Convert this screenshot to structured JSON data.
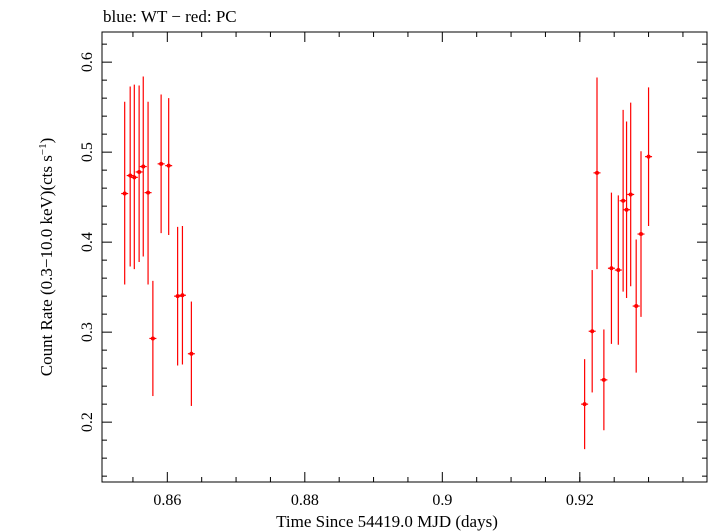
{
  "chart_data": {
    "type": "scatter",
    "title": "blue: WT − red: PC",
    "xlabel": "Time Since 54419.0 MJD (days)",
    "ylabel_main": "Count Rate (0.3−10.0 keV)(cts s",
    "ylabel_sup": "−1",
    "ylabel_end": ")",
    "xlim": [
      0.8505,
      0.9385
    ],
    "ylim": [
      0.1335,
      0.6335
    ],
    "xticks": [
      0.86,
      0.88,
      0.9,
      0.92
    ],
    "xtick_labels": [
      "0.86",
      "0.88",
      "0.9",
      "0.92"
    ],
    "yticks": [
      0.2,
      0.3,
      0.4,
      0.5,
      0.6
    ],
    "ytick_labels": [
      "0.2",
      "0.3",
      "0.4",
      "0.5",
      "0.6"
    ],
    "grid": false,
    "series": [
      {
        "color": "#ff0000",
        "points": [
          {
            "x": 0.8538,
            "y": 0.454,
            "ylo": 0.353,
            "yhi": 0.556
          },
          {
            "x": 0.8546,
            "y": 0.474,
            "ylo": 0.373,
            "yhi": 0.573
          },
          {
            "x": 0.8552,
            "y": 0.472,
            "ylo": 0.37,
            "yhi": 0.575
          },
          {
            "x": 0.8559,
            "y": 0.478,
            "ylo": 0.378,
            "yhi": 0.574
          },
          {
            "x": 0.8565,
            "y": 0.484,
            "ylo": 0.384,
            "yhi": 0.584
          },
          {
            "x": 0.8572,
            "y": 0.455,
            "ylo": 0.353,
            "yhi": 0.556
          },
          {
            "x": 0.8579,
            "y": 0.293,
            "ylo": 0.229,
            "yhi": 0.357
          },
          {
            "x": 0.8591,
            "y": 0.487,
            "ylo": 0.41,
            "yhi": 0.564
          },
          {
            "x": 0.8602,
            "y": 0.485,
            "ylo": 0.408,
            "yhi": 0.56
          },
          {
            "x": 0.8615,
            "y": 0.34,
            "ylo": 0.263,
            "yhi": 0.417
          },
          {
            "x": 0.8622,
            "y": 0.341,
            "ylo": 0.264,
            "yhi": 0.418
          },
          {
            "x": 0.8635,
            "y": 0.276,
            "ylo": 0.218,
            "yhi": 0.334
          },
          {
            "x": 0.9207,
            "y": 0.22,
            "ylo": 0.17,
            "yhi": 0.27
          },
          {
            "x": 0.9218,
            "y": 0.301,
            "ylo": 0.233,
            "yhi": 0.369
          },
          {
            "x": 0.9225,
            "y": 0.477,
            "ylo": 0.37,
            "yhi": 0.583
          },
          {
            "x": 0.9235,
            "y": 0.247,
            "ylo": 0.191,
            "yhi": 0.303
          },
          {
            "x": 0.9246,
            "y": 0.371,
            "ylo": 0.287,
            "yhi": 0.455
          },
          {
            "x": 0.9256,
            "y": 0.369,
            "ylo": 0.286,
            "yhi": 0.452
          },
          {
            "x": 0.9263,
            "y": 0.446,
            "ylo": 0.345,
            "yhi": 0.547
          },
          {
            "x": 0.9268,
            "y": 0.436,
            "ylo": 0.338,
            "yhi": 0.534
          },
          {
            "x": 0.9274,
            "y": 0.453,
            "ylo": 0.351,
            "yhi": 0.555
          },
          {
            "x": 0.9282,
            "y": 0.329,
            "ylo": 0.255,
            "yhi": 0.403
          },
          {
            "x": 0.9289,
            "y": 0.409,
            "ylo": 0.317,
            "yhi": 0.501
          },
          {
            "x": 0.93,
            "y": 0.495,
            "ylo": 0.418,
            "yhi": 0.572
          }
        ]
      }
    ]
  }
}
